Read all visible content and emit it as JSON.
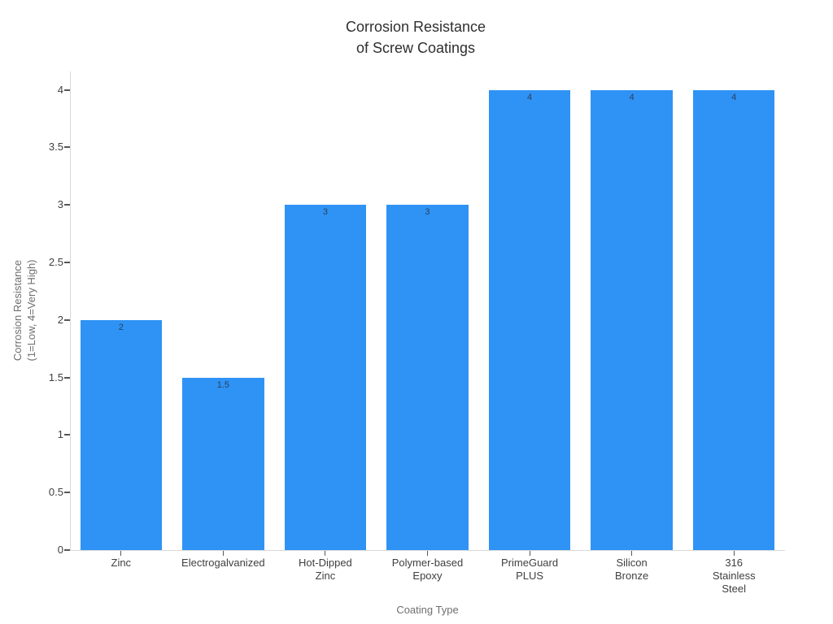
{
  "chart_data": {
    "type": "bar",
    "title": "Corrosion Resistance\nof Screw Coatings",
    "xlabel": "Coating Type",
    "ylabel": "Corrosion Resistance\n(1=Low, 4=Very High)",
    "categories": [
      "Zinc",
      "Electrogalvanized",
      "Hot-Dipped\nZinc",
      "Polymer-based\nEpoxy",
      "PrimeGuard\nPLUS",
      "Silicon\nBronze",
      "316\nStainless\nSteel"
    ],
    "values": [
      2,
      1.5,
      3,
      3,
      4,
      4,
      4
    ],
    "bar_labels": [
      "2",
      "1.5",
      "3",
      "3",
      "4",
      "4",
      "4"
    ],
    "ytick_values": [
      0,
      0.5,
      1,
      1.5,
      2,
      2.5,
      3,
      3.5,
      4
    ],
    "ytick_labels": [
      "0",
      "0.5",
      "1",
      "1.5",
      "2",
      "2.5",
      "3",
      "3.5",
      "4"
    ],
    "ylim": [
      0,
      4.16
    ],
    "grid": false,
    "legend": false,
    "colors": {
      "bar": "#2F93F5",
      "bar_label": "#2a3f5f",
      "axis_line": "#d9d9d9",
      "tick_mark": "#565656",
      "tick_label": "#3f3f3f",
      "axis_title": "#6f6f6f",
      "title": "#2f2f2f",
      "background": "#ffffff"
    }
  }
}
